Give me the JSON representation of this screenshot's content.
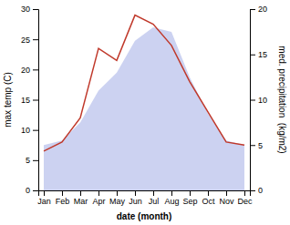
{
  "chart_data": {
    "type": "line",
    "categories": [
      "Jan",
      "Feb",
      "Mar",
      "Apr",
      "May",
      "Jun",
      "Jul",
      "Aug",
      "Sep",
      "Oct",
      "Nov",
      "Dec"
    ],
    "xlabel": "date (month)",
    "ylabel": "max temp (C)",
    "y2label": "med. precipitation  (kg/m2)",
    "ylim": [
      0,
      30
    ],
    "yticks": [
      0,
      5,
      10,
      15,
      20,
      25,
      30
    ],
    "y2lim": [
      0,
      20
    ],
    "y2ticks": [
      0,
      5,
      10,
      15,
      20
    ],
    "grid": false,
    "series": [
      {
        "type": "area",
        "axis": "y2",
        "color": "#aab4e8",
        "values": [
          5.0,
          5.5,
          7.5,
          11.0,
          13.0,
          16.5,
          18.0,
          17.5,
          12.5,
          8.5,
          5.5,
          5.0
        ]
      },
      {
        "type": "line",
        "color": "#c0392b",
        "values": [
          6.5,
          8.0,
          12.0,
          23.5,
          21.5,
          29.0,
          27.5,
          24.0,
          18.0,
          13.0,
          8.0,
          7.5
        ]
      }
    ]
  }
}
